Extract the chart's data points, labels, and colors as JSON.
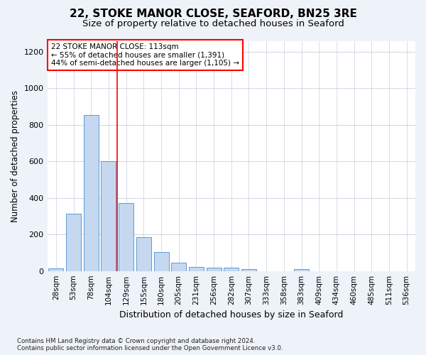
{
  "title1": "22, STOKE MANOR CLOSE, SEAFORD, BN25 3RE",
  "title2": "Size of property relative to detached houses in Seaford",
  "xlabel": "Distribution of detached houses by size in Seaford",
  "ylabel": "Number of detached properties",
  "footnote": "Contains HM Land Registry data © Crown copyright and database right 2024.\nContains public sector information licensed under the Open Government Licence v3.0.",
  "bar_labels": [
    "28sqm",
    "53sqm",
    "78sqm",
    "104sqm",
    "129sqm",
    "155sqm",
    "180sqm",
    "205sqm",
    "231sqm",
    "256sqm",
    "282sqm",
    "307sqm",
    "333sqm",
    "358sqm",
    "383sqm",
    "409sqm",
    "434sqm",
    "460sqm",
    "485sqm",
    "511sqm",
    "536sqm"
  ],
  "bar_values": [
    15,
    315,
    855,
    600,
    370,
    185,
    105,
    47,
    22,
    18,
    18,
    10,
    0,
    0,
    10,
    0,
    0,
    0,
    0,
    0,
    0
  ],
  "bar_color": "#c5d8f0",
  "bar_edge_color": "#5b9bd5",
  "vline_x": 3.5,
  "vline_color": "red",
  "annotation_text": "22 STOKE MANOR CLOSE: 113sqm\n← 55% of detached houses are smaller (1,391)\n44% of semi-detached houses are larger (1,105) →",
  "annotation_box_color": "white",
  "annotation_box_edgecolor": "red",
  "ylim": [
    0,
    1260
  ],
  "yticks": [
    0,
    200,
    400,
    600,
    800,
    1000,
    1200
  ],
  "bg_color": "#eef2f9",
  "plot_bg_color": "white",
  "title1_fontsize": 11,
  "title2_fontsize": 9.5,
  "annotation_fontsize": 7.5,
  "ylabel_fontsize": 8.5,
  "xlabel_fontsize": 9,
  "tick_fontsize": 7.5,
  "ytick_fontsize": 8,
  "footnote_fontsize": 6.2
}
